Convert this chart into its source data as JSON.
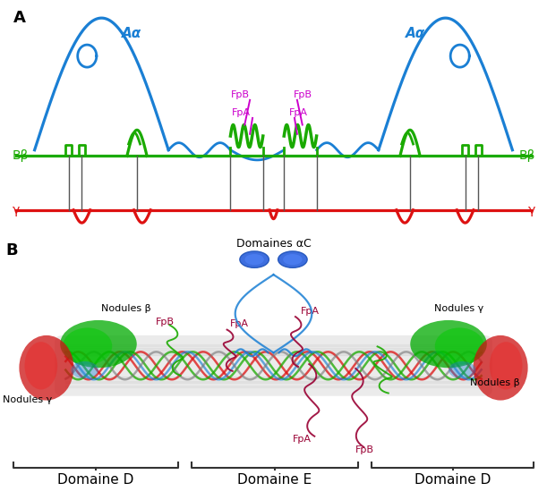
{
  "fig_width": 6.11,
  "fig_height": 5.59,
  "dpi": 100,
  "bg_color": "#ffffff",
  "blue": "#1a7fd4",
  "green": "#1aaa00",
  "red": "#dd1111",
  "magenta": "#cc00cc",
  "dark_red": "#990033",
  "gray": "#888888",
  "panel_A": "A",
  "panel_B": "B",
  "Aa": "Aα",
  "Bb": "Bβ",
  "gamma": "γ",
  "FpA": "FpA",
  "FpB": "FpB",
  "dom_D": "Domaine D",
  "dom_E": "Domaine E",
  "dom_aC": "Domaines αC",
  "nod_beta": "Nodules β",
  "nod_gamma": "Nodules γ",
  "lw_main": 2.0
}
